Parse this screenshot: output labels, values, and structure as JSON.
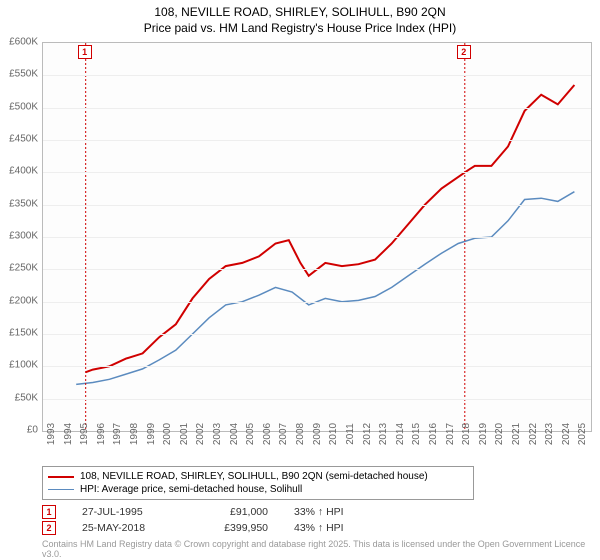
{
  "title_line1": "108, NEVILLE ROAD, SHIRLEY, SOLIHULL, B90 2QN",
  "title_line2": "Price paid vs. HM Land Registry's House Price Index (HPI)",
  "chart": {
    "type": "line",
    "background_color": "#fdfdfd",
    "grid_color": "#eeeeee",
    "axis_color": "#bbbbbb",
    "ylim": [
      0,
      600000
    ],
    "ytick_step": 50000,
    "ytick_labels": [
      "£0",
      "£50K",
      "£100K",
      "£150K",
      "£200K",
      "£250K",
      "£300K",
      "£350K",
      "£400K",
      "£450K",
      "£500K",
      "£550K",
      "£600K"
    ],
    "xlim": [
      1993,
      2026
    ],
    "xticks": [
      1993,
      1994,
      1995,
      1996,
      1997,
      1998,
      1999,
      2000,
      2001,
      2002,
      2003,
      2004,
      2005,
      2006,
      2007,
      2008,
      2009,
      2010,
      2011,
      2012,
      2013,
      2014,
      2015,
      2016,
      2017,
      2018,
      2019,
      2020,
      2021,
      2022,
      2023,
      2024,
      2025
    ],
    "series": [
      {
        "name": "price_paid",
        "label": "108, NEVILLE ROAD, SHIRLEY, SOLIHULL, B90 2QN (semi-detached house)",
        "color": "#d00000",
        "line_width": 2,
        "data": [
          [
            1995.57,
            91000
          ],
          [
            1996,
            95000
          ],
          [
            1997,
            100000
          ],
          [
            1998,
            112000
          ],
          [
            1999,
            120000
          ],
          [
            2000,
            145000
          ],
          [
            2001,
            165000
          ],
          [
            2002,
            205000
          ],
          [
            2003,
            235000
          ],
          [
            2004,
            255000
          ],
          [
            2005,
            260000
          ],
          [
            2006,
            270000
          ],
          [
            2007,
            290000
          ],
          [
            2007.8,
            295000
          ],
          [
            2008.5,
            260000
          ],
          [
            2009,
            240000
          ],
          [
            2010,
            260000
          ],
          [
            2011,
            255000
          ],
          [
            2012,
            258000
          ],
          [
            2013,
            265000
          ],
          [
            2014,
            290000
          ],
          [
            2015,
            320000
          ],
          [
            2016,
            350000
          ],
          [
            2017,
            375000
          ],
          [
            2018.4,
            399950
          ],
          [
            2018.7,
            405000
          ],
          [
            2019,
            410000
          ],
          [
            2020,
            410000
          ],
          [
            2021,
            440000
          ],
          [
            2022,
            495000
          ],
          [
            2023,
            520000
          ],
          [
            2024,
            505000
          ],
          [
            2025,
            535000
          ]
        ]
      },
      {
        "name": "hpi",
        "label": "HPI: Average price, semi-detached house, Solihull",
        "color": "#5b8bbf",
        "line_width": 1.5,
        "data": [
          [
            1995,
            72000
          ],
          [
            1996,
            75000
          ],
          [
            1997,
            80000
          ],
          [
            1998,
            88000
          ],
          [
            1999,
            96000
          ],
          [
            2000,
            110000
          ],
          [
            2001,
            125000
          ],
          [
            2002,
            150000
          ],
          [
            2003,
            175000
          ],
          [
            2004,
            195000
          ],
          [
            2005,
            200000
          ],
          [
            2006,
            210000
          ],
          [
            2007,
            222000
          ],
          [
            2008,
            215000
          ],
          [
            2009,
            195000
          ],
          [
            2010,
            205000
          ],
          [
            2011,
            200000
          ],
          [
            2012,
            202000
          ],
          [
            2013,
            208000
          ],
          [
            2014,
            222000
          ],
          [
            2015,
            240000
          ],
          [
            2016,
            258000
          ],
          [
            2017,
            275000
          ],
          [
            2018,
            290000
          ],
          [
            2019,
            298000
          ],
          [
            2020,
            300000
          ],
          [
            2021,
            325000
          ],
          [
            2022,
            358000
          ],
          [
            2023,
            360000
          ],
          [
            2024,
            355000
          ],
          [
            2025,
            370000
          ]
        ]
      }
    ],
    "markers": [
      {
        "id": "1",
        "year": 1995.57
      },
      {
        "id": "2",
        "year": 2018.4
      }
    ]
  },
  "legend": {
    "items": [
      {
        "color": "#d00000",
        "width": 2,
        "label": "108, NEVILLE ROAD, SHIRLEY, SOLIHULL, B90 2QN (semi-detached house)"
      },
      {
        "color": "#5b8bbf",
        "width": 1.5,
        "label": "HPI: Average price, semi-detached house, Solihull"
      }
    ]
  },
  "transactions": [
    {
      "id": "1",
      "date": "27-JUL-1995",
      "price": "£91,000",
      "pct": "33% ↑ HPI"
    },
    {
      "id": "2",
      "date": "25-MAY-2018",
      "price": "£399,950",
      "pct": "43% ↑ HPI"
    }
  ],
  "attribution": "Contains HM Land Registry data © Crown copyright and database right 2025. This data is licensed under the Open Government Licence v3.0."
}
